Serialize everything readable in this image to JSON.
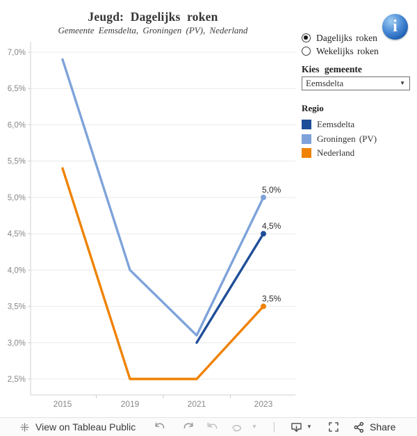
{
  "header": {
    "title": "Jeugd: Dagelijks roken",
    "subtitle": "Gemeente Eemsdelta, Groningen (PV), Nederland"
  },
  "controls": {
    "info_icon": "i",
    "radio_group": {
      "options": [
        {
          "label": "Dagelijks roken",
          "selected": true
        },
        {
          "label": "Wekelijks roken",
          "selected": false
        }
      ]
    },
    "dropdown": {
      "label": "Kies gemeente",
      "value": "Eemsdelta",
      "caret_icon": "▼"
    }
  },
  "legend": {
    "title": "Regio",
    "items": [
      {
        "label": "Eemsdelta",
        "color": "#1F4E99"
      },
      {
        "label": "Groningen (PV)",
        "color": "#7EA3DA"
      },
      {
        "label": "Nederland",
        "color": "#EF8200"
      }
    ]
  },
  "chart_data": {
    "type": "line",
    "title": "Jeugd: Dagelijks roken",
    "subtitle": "Gemeente Eemsdelta, Groningen (PV), Nederland",
    "categories": [
      "2015",
      "2019",
      "2021",
      "2023"
    ],
    "series": [
      {
        "name": "Groningen (PV)",
        "color": "#7EA3DA",
        "values": [
          6.9,
          4.0,
          3.1,
          5.0
        ],
        "end_label": "5,0%"
      },
      {
        "name": "Eemsdelta",
        "color": "#1F4E99",
        "values": [
          null,
          null,
          3.0,
          4.5
        ],
        "end_label": "4,5%"
      },
      {
        "name": "Nederland",
        "color": "#EF8200",
        "values": [
          5.4,
          2.5,
          2.5,
          3.5
        ],
        "end_label": "3,5%"
      }
    ],
    "y_ticks": [
      {
        "value": 7.0,
        "label": "7,0%"
      },
      {
        "value": 6.5,
        "label": "6,5%"
      },
      {
        "value": 6.0,
        "label": "6,0%"
      },
      {
        "value": 5.5,
        "label": "5,5%"
      },
      {
        "value": 5.0,
        "label": "5,0%"
      },
      {
        "value": 4.5,
        "label": "4,5%"
      },
      {
        "value": 4.0,
        "label": "4,0%"
      },
      {
        "value": 3.5,
        "label": "3,5%"
      },
      {
        "value": 3.0,
        "label": "3,0%"
      },
      {
        "value": 2.5,
        "label": "2,5%"
      }
    ],
    "ylim": [
      2.3,
      7.1
    ],
    "unit": "%",
    "grid": true,
    "legend_position": "right"
  },
  "toolbar": {
    "logo_icon": "tableau-logo",
    "view_text": "View on Tableau Public",
    "icons": [
      "undo",
      "redo",
      "reset",
      "refresh",
      "download",
      "fullscreen",
      "share"
    ],
    "share_text": "Share"
  }
}
